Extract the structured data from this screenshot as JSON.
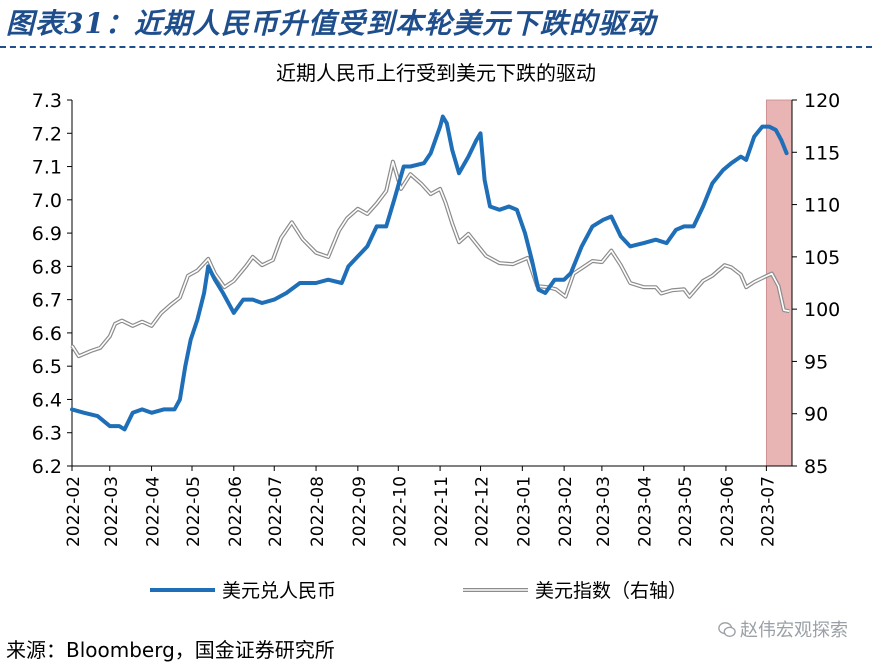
{
  "figure": {
    "title": "图表31：近期人民币升值受到本轮美元下跌的驱动",
    "source": "来源：Bloomberg，国金证券研究所",
    "watermark": "赵伟宏观探索",
    "watermark_icon": "wechat-icon"
  },
  "chart_data": {
    "type": "line",
    "title": "近期人民币上行受到美元下跌的驱动",
    "x_range": [
      "2022-02-01",
      "2023-07-20"
    ],
    "x_ticks": [
      "2022-02",
      "2022-03",
      "2022-04",
      "2022-05",
      "2022-06",
      "2022-07",
      "2022-08",
      "2022-09",
      "2022-10",
      "2022-11",
      "2022-12",
      "2023-01",
      "2023-02",
      "2023-03",
      "2023-04",
      "2023-05",
      "2023-06",
      "2023-07"
    ],
    "y_left": {
      "min": 6.2,
      "max": 7.3,
      "ticks": [
        "6.2",
        "6.3",
        "6.4",
        "6.5",
        "6.6",
        "6.7",
        "6.8",
        "6.9",
        "7.0",
        "7.1",
        "7.2",
        "7.3"
      ]
    },
    "y_right": {
      "min": 85,
      "max": 120,
      "ticks": [
        "85",
        "90",
        "95",
        "100",
        "105",
        "110",
        "115",
        "120"
      ]
    },
    "highlight": {
      "from": "2023-07-01",
      "to": "2023-07-20",
      "color": "#e8b4b4"
    },
    "grid": false,
    "legend_position": "bottom",
    "series": [
      {
        "name": "美元兑人民币",
        "axis": "left",
        "color": "#1f6fb8",
        "points": [
          [
            "2022-02-01",
            6.37
          ],
          [
            "2022-02-10",
            6.36
          ],
          [
            "2022-02-20",
            6.35
          ],
          [
            "2022-03-01",
            6.32
          ],
          [
            "2022-03-08",
            6.32
          ],
          [
            "2022-03-12",
            6.31
          ],
          [
            "2022-03-18",
            6.36
          ],
          [
            "2022-03-25",
            6.37
          ],
          [
            "2022-04-01",
            6.36
          ],
          [
            "2022-04-10",
            6.37
          ],
          [
            "2022-04-18",
            6.37
          ],
          [
            "2022-04-22",
            6.4
          ],
          [
            "2022-04-26",
            6.5
          ],
          [
            "2022-04-30",
            6.58
          ],
          [
            "2022-05-05",
            6.64
          ],
          [
            "2022-05-10",
            6.72
          ],
          [
            "2022-05-13",
            6.8
          ],
          [
            "2022-05-18",
            6.76
          ],
          [
            "2022-05-24",
            6.72
          ],
          [
            "2022-06-01",
            6.66
          ],
          [
            "2022-06-08",
            6.7
          ],
          [
            "2022-06-15",
            6.7
          ],
          [
            "2022-06-22",
            6.69
          ],
          [
            "2022-07-01",
            6.7
          ],
          [
            "2022-07-10",
            6.72
          ],
          [
            "2022-07-20",
            6.75
          ],
          [
            "2022-08-01",
            6.75
          ],
          [
            "2022-08-10",
            6.76
          ],
          [
            "2022-08-20",
            6.75
          ],
          [
            "2022-08-25",
            6.8
          ],
          [
            "2022-09-01",
            6.83
          ],
          [
            "2022-09-08",
            6.86
          ],
          [
            "2022-09-15",
            6.92
          ],
          [
            "2022-09-22",
            6.92
          ],
          [
            "2022-09-28",
            7.0
          ],
          [
            "2022-10-05",
            7.1
          ],
          [
            "2022-10-10",
            7.1
          ],
          [
            "2022-10-20",
            7.11
          ],
          [
            "2022-10-25",
            7.14
          ],
          [
            "2022-11-01",
            7.22
          ],
          [
            "2022-11-03",
            7.25
          ],
          [
            "2022-11-06",
            7.23
          ],
          [
            "2022-11-10",
            7.15
          ],
          [
            "2022-11-15",
            7.08
          ],
          [
            "2022-11-22",
            7.13
          ],
          [
            "2022-11-28",
            7.18
          ],
          [
            "2022-12-01",
            7.2
          ],
          [
            "2022-12-04",
            7.06
          ],
          [
            "2022-12-08",
            6.98
          ],
          [
            "2022-12-15",
            6.97
          ],
          [
            "2022-12-22",
            6.98
          ],
          [
            "2022-12-28",
            6.97
          ],
          [
            "2023-01-03",
            6.9
          ],
          [
            "2023-01-08",
            6.82
          ],
          [
            "2023-01-13",
            6.73
          ],
          [
            "2023-01-18",
            6.72
          ],
          [
            "2023-01-25",
            6.76
          ],
          [
            "2023-02-01",
            6.76
          ],
          [
            "2023-02-06",
            6.78
          ],
          [
            "2023-02-14",
            6.86
          ],
          [
            "2023-02-22",
            6.92
          ],
          [
            "2023-03-02",
            6.94
          ],
          [
            "2023-03-08",
            6.95
          ],
          [
            "2023-03-15",
            6.89
          ],
          [
            "2023-03-22",
            6.86
          ],
          [
            "2023-04-01",
            6.87
          ],
          [
            "2023-04-10",
            6.88
          ],
          [
            "2023-04-18",
            6.87
          ],
          [
            "2023-04-25",
            6.91
          ],
          [
            "2023-05-01",
            6.92
          ],
          [
            "2023-05-08",
            6.92
          ],
          [
            "2023-05-15",
            6.98
          ],
          [
            "2023-05-22",
            7.05
          ],
          [
            "2023-05-30",
            7.09
          ],
          [
            "2023-06-05",
            7.11
          ],
          [
            "2023-06-12",
            7.13
          ],
          [
            "2023-06-16",
            7.12
          ],
          [
            "2023-06-22",
            7.19
          ],
          [
            "2023-06-28",
            7.22
          ],
          [
            "2023-07-03",
            7.22
          ],
          [
            "2023-07-08",
            7.21
          ],
          [
            "2023-07-12",
            7.18
          ],
          [
            "2023-07-16",
            7.14
          ]
        ]
      },
      {
        "name": "美元指数（右轴）",
        "axis": "right",
        "color": "#b0b0b0",
        "points": [
          [
            "2022-02-01",
            96.5
          ],
          [
            "2022-02-06",
            95.5
          ],
          [
            "2022-02-15",
            96.0
          ],
          [
            "2022-02-22",
            96.3
          ],
          [
            "2022-03-01",
            97.4
          ],
          [
            "2022-03-05",
            98.6
          ],
          [
            "2022-03-10",
            98.9
          ],
          [
            "2022-03-18",
            98.4
          ],
          [
            "2022-03-25",
            98.8
          ],
          [
            "2022-04-01",
            98.4
          ],
          [
            "2022-04-08",
            99.6
          ],
          [
            "2022-04-15",
            100.4
          ],
          [
            "2022-04-22",
            101.1
          ],
          [
            "2022-04-28",
            103.2
          ],
          [
            "2022-05-05",
            103.7
          ],
          [
            "2022-05-13",
            104.8
          ],
          [
            "2022-05-18",
            103.4
          ],
          [
            "2022-05-25",
            102.1
          ],
          [
            "2022-06-01",
            102.7
          ],
          [
            "2022-06-10",
            104.1
          ],
          [
            "2022-06-15",
            105.0
          ],
          [
            "2022-06-22",
            104.2
          ],
          [
            "2022-06-30",
            104.7
          ],
          [
            "2022-07-06",
            106.8
          ],
          [
            "2022-07-14",
            108.3
          ],
          [
            "2022-07-22",
            106.7
          ],
          [
            "2022-08-01",
            105.4
          ],
          [
            "2022-08-10",
            105.0
          ],
          [
            "2022-08-18",
            107.5
          ],
          [
            "2022-08-24",
            108.7
          ],
          [
            "2022-09-01",
            109.6
          ],
          [
            "2022-09-08",
            109.1
          ],
          [
            "2022-09-15",
            110.1
          ],
          [
            "2022-09-22",
            111.3
          ],
          [
            "2022-09-27",
            114.1
          ],
          [
            "2022-10-03",
            111.5
          ],
          [
            "2022-10-10",
            112.9
          ],
          [
            "2022-10-18",
            112.0
          ],
          [
            "2022-10-25",
            111.0
          ],
          [
            "2022-11-01",
            111.5
          ],
          [
            "2022-11-05",
            110.2
          ],
          [
            "2022-11-10",
            108.2
          ],
          [
            "2022-11-15",
            106.4
          ],
          [
            "2022-11-22",
            107.2
          ],
          [
            "2022-11-30",
            105.9
          ],
          [
            "2022-12-05",
            105.1
          ],
          [
            "2022-12-15",
            104.4
          ],
          [
            "2022-12-25",
            104.3
          ],
          [
            "2023-01-05",
            104.9
          ],
          [
            "2023-01-12",
            102.2
          ],
          [
            "2023-01-20",
            102.1
          ],
          [
            "2023-01-26",
            101.9
          ],
          [
            "2023-02-02",
            101.2
          ],
          [
            "2023-02-08",
            103.4
          ],
          [
            "2023-02-15",
            104.0
          ],
          [
            "2023-02-22",
            104.6
          ],
          [
            "2023-03-01",
            104.5
          ],
          [
            "2023-03-08",
            105.6
          ],
          [
            "2023-03-15",
            104.2
          ],
          [
            "2023-03-22",
            102.5
          ],
          [
            "2023-04-01",
            102.1
          ],
          [
            "2023-04-10",
            102.1
          ],
          [
            "2023-04-14",
            101.5
          ],
          [
            "2023-04-22",
            101.8
          ],
          [
            "2023-05-01",
            101.9
          ],
          [
            "2023-05-05",
            101.2
          ],
          [
            "2023-05-15",
            102.7
          ],
          [
            "2023-05-22",
            103.2
          ],
          [
            "2023-05-31",
            104.2
          ],
          [
            "2023-06-05",
            104.0
          ],
          [
            "2023-06-12",
            103.3
          ],
          [
            "2023-06-16",
            102.1
          ],
          [
            "2023-06-22",
            102.6
          ],
          [
            "2023-06-30",
            103.1
          ],
          [
            "2023-07-05",
            103.4
          ],
          [
            "2023-07-10",
            102.2
          ],
          [
            "2023-07-14",
            99.9
          ],
          [
            "2023-07-18",
            99.8
          ]
        ]
      }
    ]
  }
}
